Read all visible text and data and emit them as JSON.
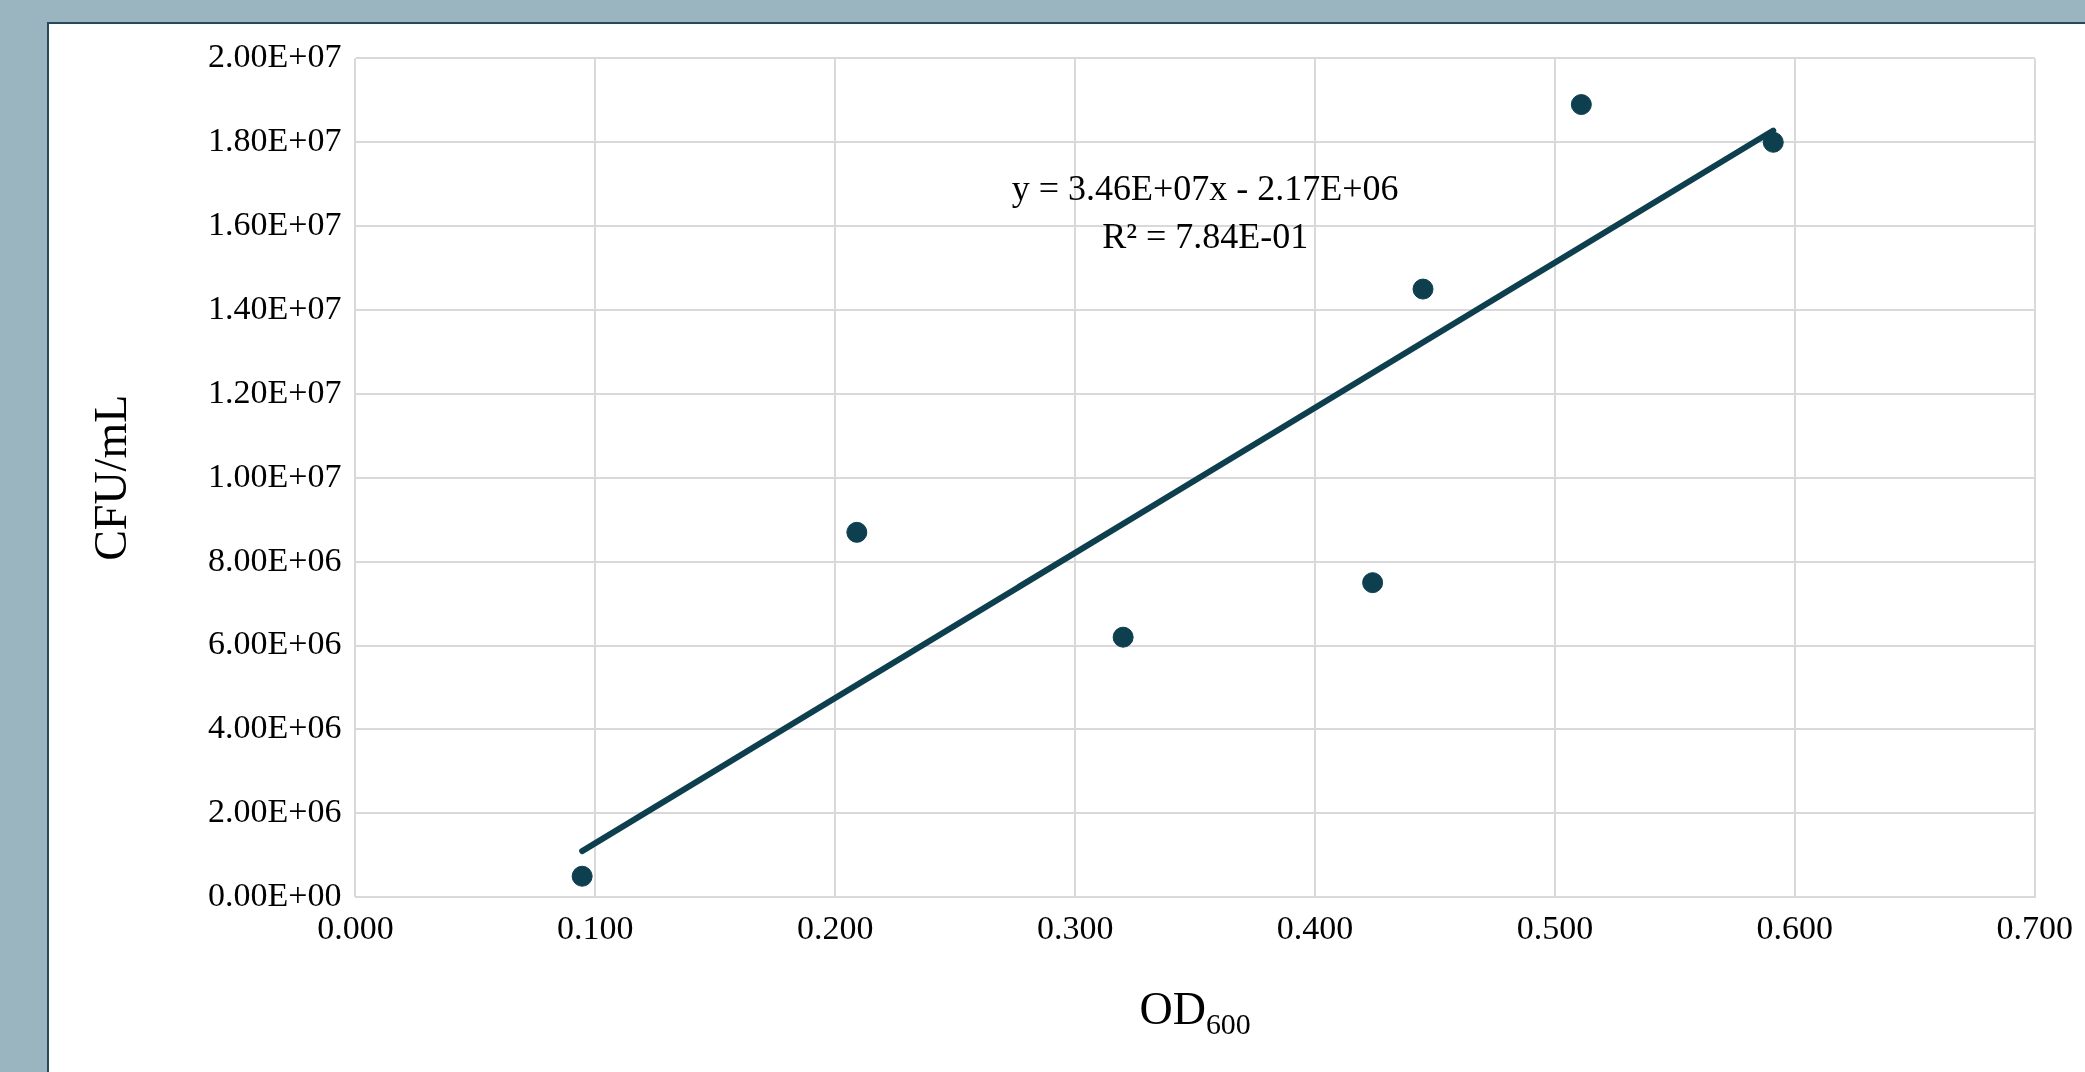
{
  "chart_data": {
    "type": "scatter",
    "xlabel": "OD$_{600}$",
    "ylabel": "CFU/mL",
    "series": [
      {
        "color": "#0d3f4f",
        "marker": "circle",
        "x": [
          0.0945,
          0.209,
          0.32,
          0.424,
          0.445,
          0.511,
          0.591
        ],
        "values": [
          500000,
          8700000,
          6200000,
          7500000,
          14500000,
          18900000,
          18000000
        ]
      },
      {
        "type": "line",
        "color": "#0d3f4f",
        "marker": "none",
        "x": [
          0.0945,
          0.591
        ],
        "values": [
          1100000,
          18280000
        ]
      }
    ],
    "xlim": [
      0,
      0.7
    ],
    "ylim": [
      0,
      20000000
    ],
    "xticks": [
      {
        "value": 0,
        "label": "0.000"
      },
      {
        "value": 0.1,
        "label": "0.100"
      },
      {
        "value": 0.2,
        "label": "0.200"
      },
      {
        "value": 0.3,
        "label": "0.300"
      },
      {
        "value": 0.4,
        "label": "0.400"
      },
      {
        "value": 0.5,
        "label": "0.500"
      },
      {
        "value": 0.6,
        "label": "0.600"
      },
      {
        "value": 0.7,
        "label": "0.700"
      }
    ],
    "yticks": [
      {
        "value": 0,
        "label": "0.00E+00"
      },
      {
        "value": 2000000,
        "label": "2.00E+06"
      },
      {
        "value": 4000000,
        "label": "4.00E+06"
      },
      {
        "value": 6000000,
        "label": "6.00E+06"
      },
      {
        "value": 8000000,
        "label": "8.00E+06"
      },
      {
        "value": 10000000,
        "label": "1.00E+07"
      },
      {
        "value": 12000000,
        "label": "1.20E+07"
      },
      {
        "value": 14000000,
        "label": "1.40E+07"
      },
      {
        "value": 16000000,
        "label": "1.60E+07"
      },
      {
        "value": 18000000,
        "label": "1.80E+07"
      },
      {
        "value": 20000000,
        "label": "2.00E+07"
      }
    ],
    "annotations": [
      "y = 3.46E+07x - 2.17E+06",
      "R² = 7.84E-01"
    ],
    "grid": true,
    "legend": false,
    "line_style": "solid"
  }
}
